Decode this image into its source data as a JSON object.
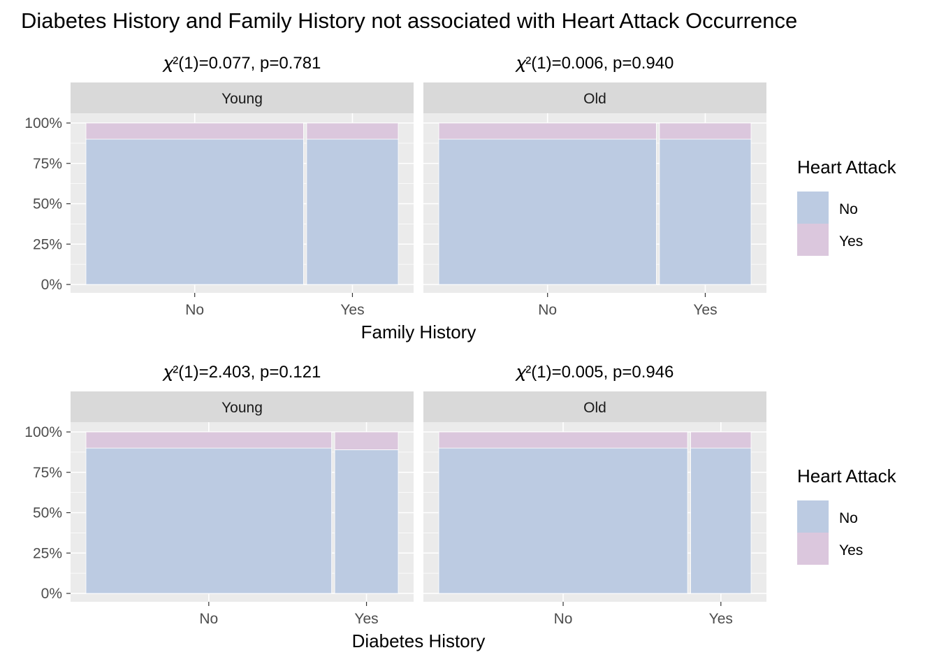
{
  "title": "Diabetes History and Family History not associated with Heart Attack Occurrence",
  "colors": {
    "no": "#bccbe2",
    "yes": "#dbc7dd",
    "panel_bg": "#ebebeb",
    "strip_bg": "#d9d9d9",
    "grid": "#ffffff"
  },
  "y_ticks": [
    "0%",
    "25%",
    "50%",
    "75%",
    "100%"
  ],
  "legend": {
    "title": "Heart Attack",
    "items": [
      {
        "label": "No",
        "color": "#bccbe2"
      },
      {
        "label": "Yes",
        "color": "#dbc7dd"
      }
    ]
  },
  "chart_data": [
    {
      "type": "bar",
      "subtype": "mosaic",
      "xlabel": "Family History",
      "ylim": [
        0,
        1
      ],
      "panels": [
        {
          "strip": "Young",
          "subtitle": "𝜒²(1)=0.077, p=0.781",
          "categories": [
            "No",
            "Yes"
          ],
          "widths": [
            0.7,
            0.3
          ],
          "series": [
            {
              "name": "No",
              "values": [
                0.9,
                0.9
              ]
            },
            {
              "name": "Yes",
              "values": [
                0.1,
                0.1
              ]
            }
          ]
        },
        {
          "strip": "Old",
          "subtitle": "𝜒²(1)=0.006, p=0.940",
          "categories": [
            "No",
            "Yes"
          ],
          "widths": [
            0.7,
            0.3
          ],
          "series": [
            {
              "name": "No",
              "values": [
                0.9,
                0.9
              ]
            },
            {
              "name": "Yes",
              "values": [
                0.1,
                0.1
              ]
            }
          ]
        }
      ]
    },
    {
      "type": "bar",
      "subtype": "mosaic",
      "xlabel": "Diabetes History",
      "ylim": [
        0,
        1
      ],
      "panels": [
        {
          "strip": "Young",
          "subtitle": "𝜒²(1)=2.403, p=0.121",
          "categories": [
            "No",
            "Yes"
          ],
          "widths": [
            0.79,
            0.21
          ],
          "series": [
            {
              "name": "No",
              "values": [
                0.9,
                0.89
              ]
            },
            {
              "name": "Yes",
              "values": [
                0.1,
                0.11
              ]
            }
          ]
        },
        {
          "strip": "Old",
          "subtitle": "𝜒²(1)=0.005, p=0.946",
          "categories": [
            "No",
            "Yes"
          ],
          "widths": [
            0.8,
            0.2
          ],
          "series": [
            {
              "name": "No",
              "values": [
                0.9,
                0.9
              ]
            },
            {
              "name": "Yes",
              "values": [
                0.1,
                0.1
              ]
            }
          ]
        }
      ]
    }
  ]
}
